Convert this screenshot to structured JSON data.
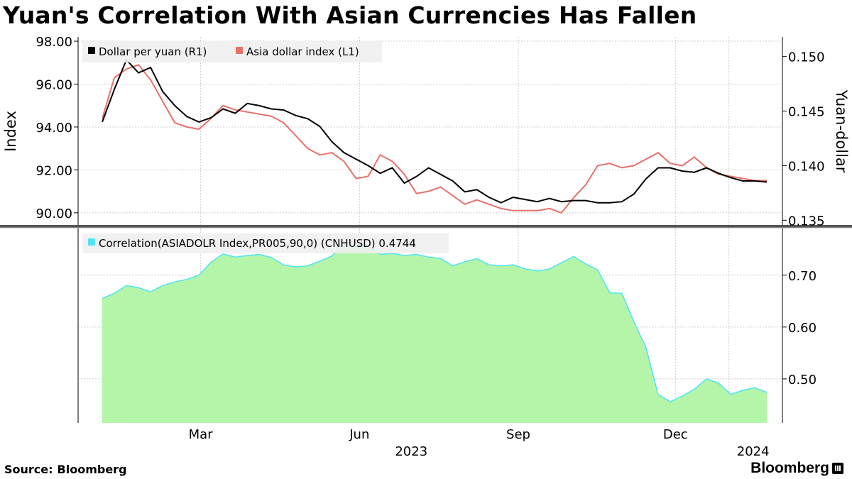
{
  "title": "Yuan's Correlation With Asian Currencies Has Fallen",
  "source_label": "Source:",
  "source_value": "Bloomberg",
  "brand": "Bloomberg",
  "colors": {
    "dollar_per_yuan": "#000000",
    "asia_dollar_index": "#e8706a",
    "correlation_line": "#4fe3f5",
    "correlation_fill": "#b4f5a9",
    "grid": "#cccccc"
  },
  "chart_data": [
    {
      "type": "line",
      "panel": "top",
      "ylabel_left": "Index",
      "ylabel_right": "Yuan-dollar",
      "left_ticks": [
        "90.00",
        "92.00",
        "94.00",
        "96.00",
        "98.00"
      ],
      "right_ticks": [
        "0.135",
        "0.140",
        "0.145",
        "0.150"
      ],
      "left_ylim": [
        89.4,
        98.2
      ],
      "right_ylim": [
        0.1345,
        0.1518
      ],
      "x_tick_labels": [
        "Mar",
        "Jun",
        "Sep",
        "Dec"
      ],
      "x_year_labels": [
        "2023",
        "2024"
      ],
      "legend_position": "top-left",
      "grid": true,
      "series": [
        {
          "name": "Dollar per yuan (R1)",
          "axis": "right",
          "x": [
            "2023-01-03",
            "2023-01-10",
            "2023-01-17",
            "2023-01-24",
            "2023-01-31",
            "2023-02-07",
            "2023-02-14",
            "2023-02-21",
            "2023-02-28",
            "2023-03-07",
            "2023-03-14",
            "2023-03-21",
            "2023-03-28",
            "2023-04-04",
            "2023-04-11",
            "2023-04-18",
            "2023-04-25",
            "2023-05-02",
            "2023-05-09",
            "2023-05-16",
            "2023-05-23",
            "2023-05-30",
            "2023-06-06",
            "2023-06-13",
            "2023-06-20",
            "2023-06-27",
            "2023-07-04",
            "2023-07-11",
            "2023-07-18",
            "2023-07-25",
            "2023-08-01",
            "2023-08-08",
            "2023-08-15",
            "2023-08-22",
            "2023-08-29",
            "2023-09-05",
            "2023-09-12",
            "2023-09-19",
            "2023-09-26",
            "2023-10-03",
            "2023-10-10",
            "2023-10-17",
            "2023-10-24",
            "2023-10-31",
            "2023-11-07",
            "2023-11-14",
            "2023-11-21",
            "2023-11-28",
            "2023-12-05",
            "2023-12-12",
            "2023-12-19",
            "2023-12-26",
            "2024-01-02",
            "2024-01-09",
            "2024-01-16",
            "2024-01-23"
          ],
          "values": [
            0.144,
            0.147,
            0.1497,
            0.1485,
            0.149,
            0.1468,
            0.1455,
            0.1445,
            0.144,
            0.1444,
            0.1452,
            0.1448,
            0.1457,
            0.1455,
            0.1452,
            0.1451,
            0.1446,
            0.1443,
            0.1436,
            0.1422,
            0.1412,
            0.1406,
            0.14,
            0.1393,
            0.1398,
            0.1384,
            0.139,
            0.1398,
            0.1392,
            0.1386,
            0.1376,
            0.1378,
            0.1371,
            0.1366,
            0.1371,
            0.1369,
            0.1367,
            0.137,
            0.1367,
            0.1368,
            0.1368,
            0.1366,
            0.1366,
            0.1367,
            0.1374,
            0.1388,
            0.1398,
            0.1398,
            0.1395,
            0.1394,
            0.1398,
            0.1393,
            0.1389,
            0.1386,
            0.1386,
            0.1385
          ]
        },
        {
          "name": "Asia dollar index (L1)",
          "axis": "left",
          "x": [
            "2023-01-03",
            "2023-01-10",
            "2023-01-17",
            "2023-01-24",
            "2023-01-31",
            "2023-02-07",
            "2023-02-14",
            "2023-02-21",
            "2023-02-28",
            "2023-03-07",
            "2023-03-14",
            "2023-03-21",
            "2023-03-28",
            "2023-04-04",
            "2023-04-11",
            "2023-04-18",
            "2023-04-25",
            "2023-05-02",
            "2023-05-09",
            "2023-05-16",
            "2023-05-23",
            "2023-05-30",
            "2023-06-06",
            "2023-06-13",
            "2023-06-20",
            "2023-06-27",
            "2023-07-04",
            "2023-07-11",
            "2023-07-18",
            "2023-07-25",
            "2023-08-01",
            "2023-08-08",
            "2023-08-15",
            "2023-08-22",
            "2023-08-29",
            "2023-09-05",
            "2023-09-12",
            "2023-09-19",
            "2023-09-26",
            "2023-10-03",
            "2023-10-10",
            "2023-10-17",
            "2023-10-24",
            "2023-10-31",
            "2023-11-07",
            "2023-11-14",
            "2023-11-21",
            "2023-11-28",
            "2023-12-05",
            "2023-12-12",
            "2023-12-19",
            "2023-12-26",
            "2024-01-02",
            "2024-01-09",
            "2024-01-16",
            "2024-01-23"
          ],
          "values": [
            94.4,
            96.3,
            96.7,
            96.9,
            96.2,
            95.2,
            94.2,
            94.0,
            93.9,
            94.4,
            95.0,
            94.8,
            94.7,
            94.6,
            94.5,
            94.2,
            93.6,
            93.0,
            92.7,
            92.8,
            92.4,
            91.6,
            91.7,
            92.7,
            92.4,
            91.8,
            90.9,
            91.0,
            91.2,
            90.8,
            90.4,
            90.6,
            90.4,
            90.2,
            90.1,
            90.1,
            90.1,
            90.2,
            90.0,
            90.7,
            91.3,
            92.2,
            92.3,
            92.1,
            92.2,
            92.5,
            92.8,
            92.3,
            92.2,
            92.6,
            92.1,
            91.8,
            91.7,
            91.6,
            91.5,
            91.5
          ]
        }
      ]
    },
    {
      "type": "area",
      "panel": "bottom",
      "right_ticks": [
        "0.50",
        "0.60",
        "0.70"
      ],
      "ylim": [
        0.415,
        0.79
      ],
      "grid": true,
      "legend_position": "top-left",
      "series": [
        {
          "name": "Correlation(ASIADOLR Index,PR005,90,0) (CNHUSD) 0.4744",
          "x": [
            "2023-01-03",
            "2023-01-10",
            "2023-01-17",
            "2023-01-24",
            "2023-01-31",
            "2023-02-07",
            "2023-02-14",
            "2023-02-21",
            "2023-02-28",
            "2023-03-07",
            "2023-03-14",
            "2023-03-21",
            "2023-03-28",
            "2023-04-04",
            "2023-04-11",
            "2023-04-18",
            "2023-04-25",
            "2023-05-02",
            "2023-05-09",
            "2023-05-16",
            "2023-05-23",
            "2023-05-30",
            "2023-06-06",
            "2023-06-13",
            "2023-06-20",
            "2023-06-27",
            "2023-07-04",
            "2023-07-11",
            "2023-07-18",
            "2023-07-25",
            "2023-08-01",
            "2023-08-08",
            "2023-08-15",
            "2023-08-22",
            "2023-08-29",
            "2023-09-05",
            "2023-09-12",
            "2023-09-19",
            "2023-09-26",
            "2023-10-03",
            "2023-10-10",
            "2023-10-17",
            "2023-10-24",
            "2023-10-31",
            "2023-11-07",
            "2023-11-14",
            "2023-11-21",
            "2023-11-28",
            "2023-12-05",
            "2023-12-12",
            "2023-12-19",
            "2023-12-26",
            "2024-01-02",
            "2024-01-09",
            "2024-01-16",
            "2024-01-23"
          ],
          "values": [
            0.655,
            0.665,
            0.68,
            0.676,
            0.668,
            0.68,
            0.687,
            0.692,
            0.7,
            0.725,
            0.741,
            0.735,
            0.738,
            0.74,
            0.734,
            0.72,
            0.716,
            0.718,
            0.727,
            0.737,
            0.76,
            0.752,
            0.755,
            0.74,
            0.742,
            0.738,
            0.74,
            0.735,
            0.732,
            0.718,
            0.726,
            0.732,
            0.72,
            0.718,
            0.72,
            0.712,
            0.708,
            0.712,
            0.724,
            0.736,
            0.722,
            0.71,
            0.666,
            0.665,
            0.61,
            0.56,
            0.47,
            0.456,
            0.467,
            0.48,
            0.5,
            0.492,
            0.47,
            0.478,
            0.483,
            0.474
          ]
        }
      ]
    }
  ]
}
